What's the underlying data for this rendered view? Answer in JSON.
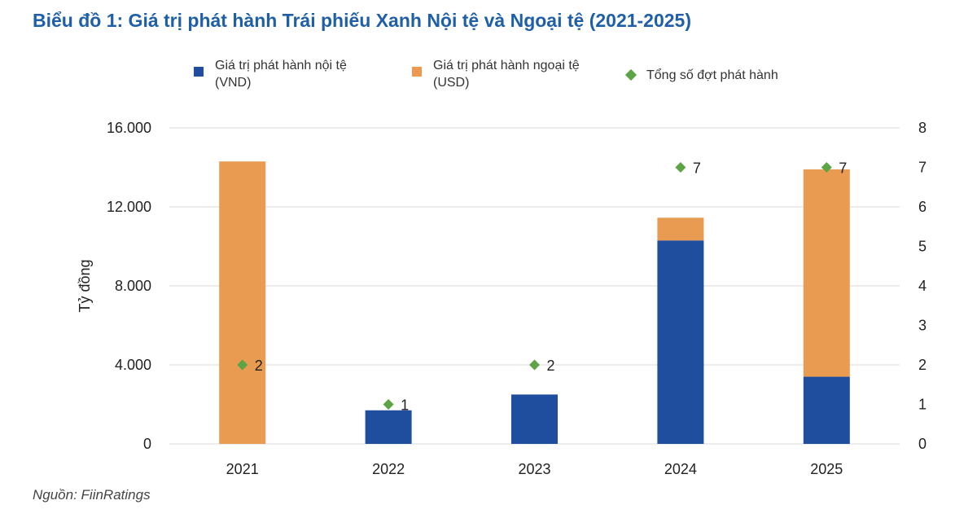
{
  "title": "Biểu đồ 1: Giá trị phát hành Trái phiếu Xanh Nội tệ và Ngoại tệ (2021-2025)",
  "source": "Nguồn: FiinRatings",
  "legend": [
    {
      "label": "Giá trị phát hành nội tệ\n(VND)",
      "color": "#1f4e9e",
      "shape": "square"
    },
    {
      "label": "Giá trị phát hành ngoại tệ\n(USD)",
      "color": "#e99b52",
      "shape": "square"
    },
    {
      "label": "Tổng số đợt phát hành",
      "color": "#5da446",
      "shape": "diamond"
    }
  ],
  "chart_data": {
    "type": "bar",
    "stacked": true,
    "title": "Biểu đồ 1: Giá trị phát hành Trái phiếu Xanh Nội tệ và Ngoại tệ (2021-2025)",
    "categories": [
      "2021",
      "2022",
      "2023",
      "2024",
      "2025"
    ],
    "series": [
      {
        "name": "Giá trị phát hành nội tệ (VND)",
        "axis": "left",
        "color": "#1f4e9e",
        "values": [
          0,
          1700,
          2500,
          10300,
          3400
        ]
      },
      {
        "name": "Giá trị phát hành ngoại tệ (USD)",
        "axis": "left",
        "color": "#e99b52",
        "values": [
          14300,
          0,
          0,
          1150,
          10500
        ]
      },
      {
        "name": "Tổng số đợt phát hành",
        "axis": "right",
        "type": "scatter",
        "marker": "diamond",
        "color": "#5da446",
        "values": [
          2,
          1,
          2,
          7,
          7
        ]
      }
    ],
    "ylabel": "Tỷ đồng",
    "ylim": [
      0,
      16000
    ],
    "yticks": [
      "0",
      "4.000",
      "8.000",
      "12.000",
      "16.000"
    ],
    "y2lim": [
      0,
      8
    ],
    "y2ticks": [
      "0",
      "1",
      "2",
      "3",
      "4",
      "5",
      "6",
      "7",
      "8"
    ],
    "grid": true,
    "legend_position": "top"
  }
}
